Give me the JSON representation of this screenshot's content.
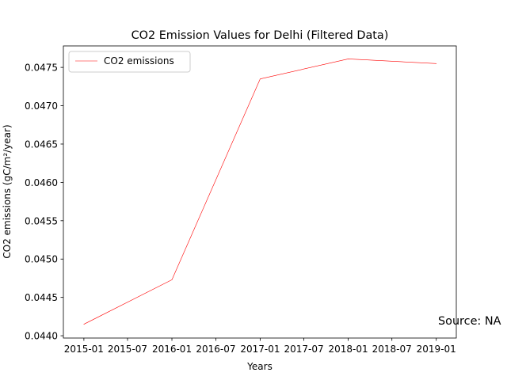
{
  "chart_data": {
    "type": "line",
    "title": "CO2 Emission Values for Delhi (Filtered Data)",
    "xlabel": "Years",
    "ylabel": "CO2 emissions (gC/m²/year)",
    "x": [
      "2015-01",
      "2016-01",
      "2017-01",
      "2018-01",
      "2019-01"
    ],
    "series": [
      {
        "name": "CO2 emissions",
        "color": "#ff0000",
        "values": [
          0.04415,
          0.04473,
          0.04735,
          0.04761,
          0.04755
        ]
      }
    ],
    "xticks": [
      "2015-01",
      "2015-07",
      "2016-01",
      "2016-07",
      "2017-01",
      "2017-07",
      "2018-01",
      "2018-07",
      "2019-01"
    ],
    "yticks": [
      0.044,
      0.0445,
      0.045,
      0.0455,
      0.046,
      0.0465,
      0.047,
      0.0475
    ],
    "ytick_labels": [
      "0.0440",
      "0.0445",
      "0.0450",
      "0.0455",
      "0.0460",
      "0.0465",
      "0.0470",
      "0.0475"
    ],
    "xlim": [
      "2014-10-08",
      "2019-03-25"
    ],
    "ylim": [
      0.04397,
      0.04778
    ],
    "legend_position": "upper-left",
    "grid": false,
    "annotation": {
      "text": "Source: NA",
      "color": "#0000ff"
    }
  }
}
